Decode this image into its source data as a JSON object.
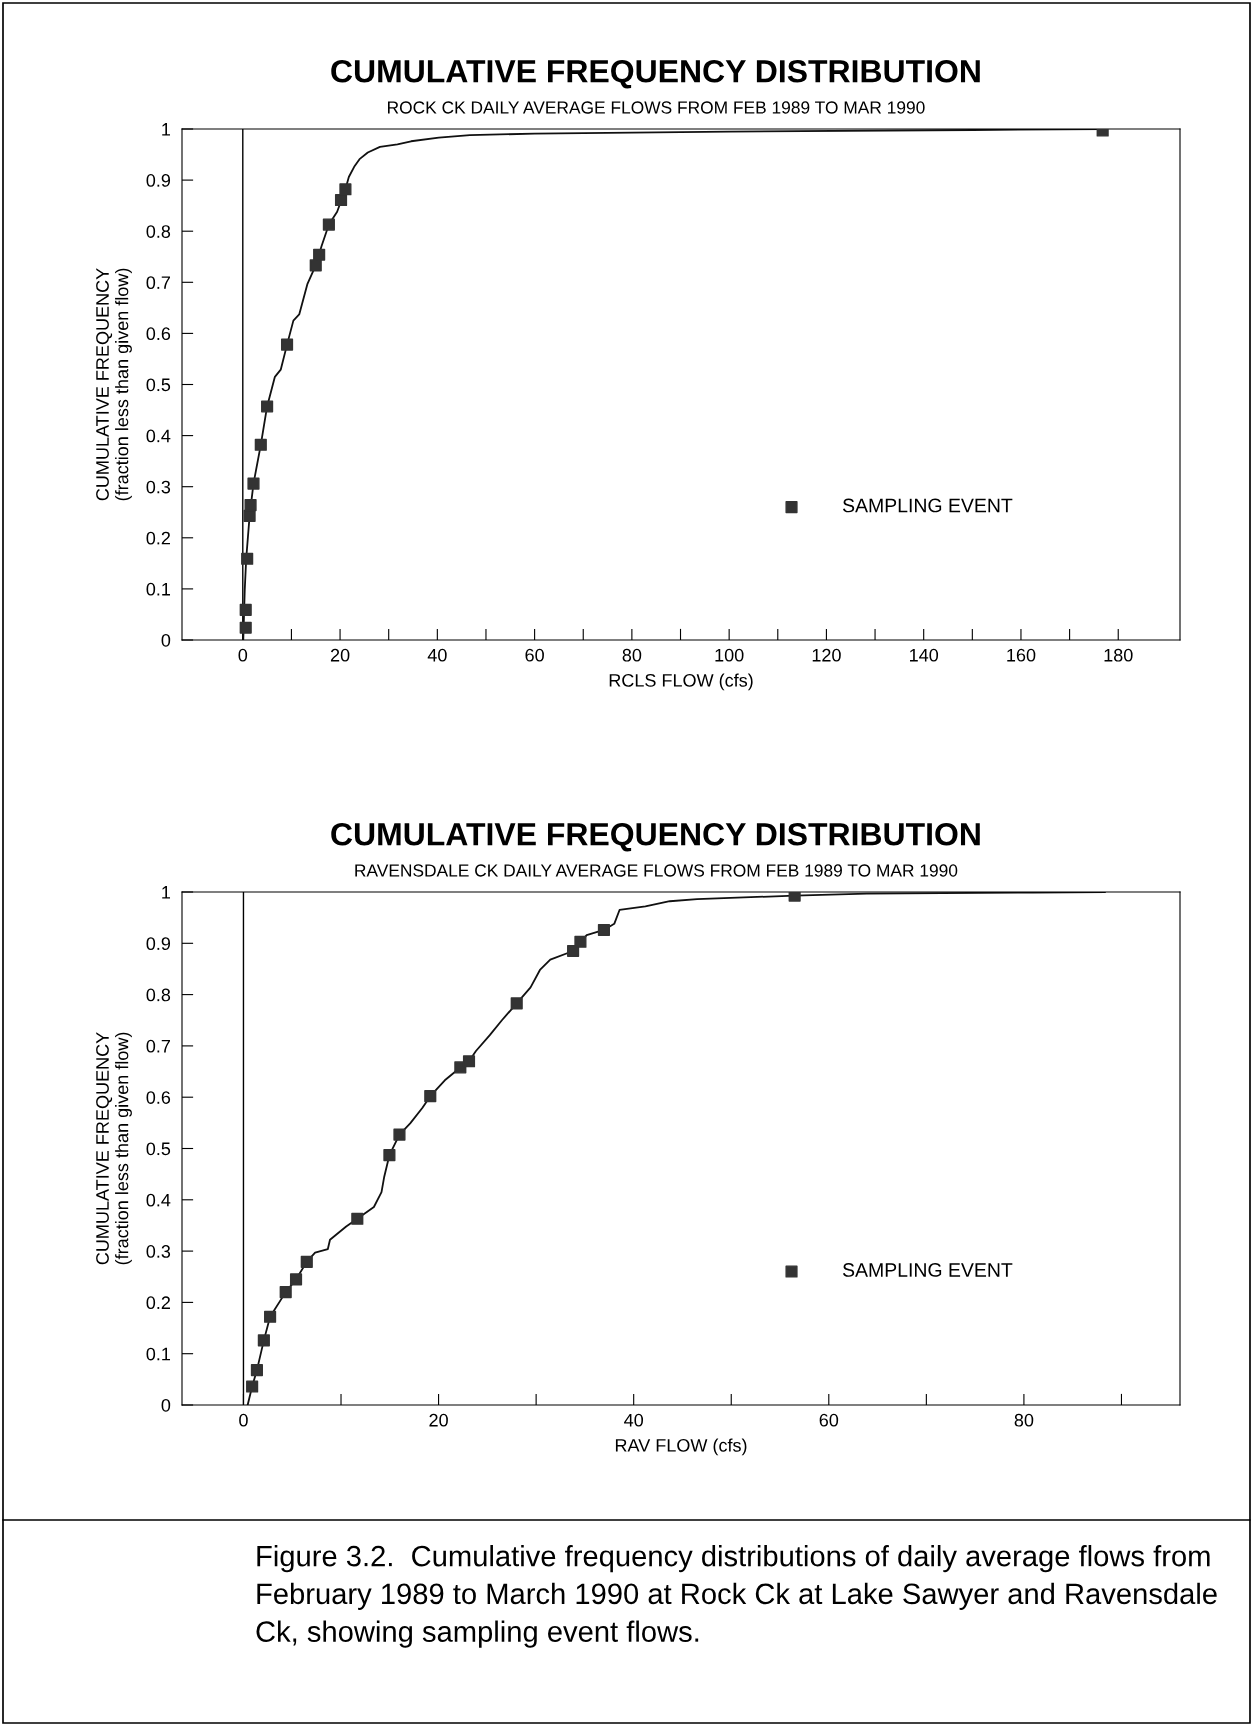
{
  "chart_data": [
    {
      "type": "line",
      "title": "CUMULATIVE FREQUENCY DISTRIBUTION",
      "subtitle": "ROCK CK DAILY AVERAGE FLOWS FROM FEB 1989 TO MAR 1990",
      "xlabel": "RCLS FLOW (cfs)",
      "ylabel": "CUMULATIVE FREQUENCY\n(fraction less than given flow)",
      "xlim": [
        -12.5,
        192.7
      ],
      "xticks": [
        0,
        {
          "value": 10,
          "label": null
        },
        20,
        {
          "value": 30,
          "label": null
        },
        40,
        {
          "value": 50,
          "label": null
        },
        60,
        {
          "value": 70,
          "label": null
        },
        80,
        {
          "value": 90,
          "label": null
        },
        100,
        {
          "value": 110,
          "label": null
        },
        120,
        {
          "value": 130,
          "label": null
        },
        140,
        {
          "value": 150,
          "label": null
        },
        160,
        {
          "value": 170,
          "label": null
        },
        180
      ],
      "ylim": [
        0,
        1
      ],
      "yticks": [
        0,
        0.1,
        0.2,
        0.3,
        0.4,
        0.5,
        0.6,
        0.7,
        0.8,
        0.9,
        1
      ],
      "ref_lines": [
        {
          "axis": "x",
          "value": 0,
          "color": "#000000"
        }
      ],
      "legend": "right",
      "grid": false,
      "series": [
        {
          "type": "line",
          "color": "#111111",
          "line_style": "solid",
          "marker": "none",
          "x": [
            0.1,
            0.4,
            0.7,
            1.4,
            2.2,
            3.7,
            5.0,
            6.6,
            7.8,
            9.1,
            10.4,
            11.6,
            13.3,
            15.0,
            16.2,
            17.7,
            19.4,
            21.1,
            21.8,
            22.9,
            24.0,
            25.7,
            28.2,
            31.8,
            34.6,
            40.3,
            46.7,
            60,
            100,
            150,
            177
          ],
          "values": [
            0,
            0.098,
            0.159,
            0.243,
            0.306,
            0.382,
            0.457,
            0.515,
            0.529,
            0.578,
            0.625,
            0.637,
            0.697,
            0.733,
            0.771,
            0.813,
            0.838,
            0.882,
            0.906,
            0.926,
            0.941,
            0.954,
            0.965,
            0.97,
            0.976,
            0.983,
            0.988,
            0.991,
            0.995,
            0.998,
            1
          ]
        },
        {
          "type": "scatter",
          "name": "SAMPLING EVENT",
          "color": "#333333",
          "marker": "square",
          "x": [
            0.6,
            0.6,
            0.9,
            1.4,
            1.6,
            2.2,
            3.7,
            5.0,
            9.1,
            15.0,
            15.7,
            17.7,
            20.2,
            21.1,
            176.8
          ],
          "values": [
            0.024,
            0.059,
            0.159,
            0.243,
            0.264,
            0.306,
            0.382,
            0.457,
            0.578,
            0.733,
            0.754,
            0.813,
            0.861,
            0.882,
            0.997
          ]
        }
      ]
    },
    {
      "type": "line",
      "title": "CUMULATIVE FREQUENCY DISTRIBUTION",
      "subtitle": "RAVENSDALE CK DAILY AVERAGE FLOWS FROM FEB 1989 TO MAR 1990",
      "xlabel": "RAV FLOW (cfs)",
      "ylabel": "CUMULATIVE FREQUENCY\n(fraction less than given flow)",
      "xlim": [
        -6.3,
        96
      ],
      "xticks": [
        0,
        {
          "value": 10,
          "label": null
        },
        20,
        {
          "value": 30,
          "label": null
        },
        40,
        {
          "value": 50,
          "label": null
        },
        60,
        {
          "value": 70,
          "label": null
        },
        80,
        {
          "value": 90,
          "label": null
        }
      ],
      "ylim": [
        0,
        1
      ],
      "yticks": [
        0,
        0.1,
        0.2,
        0.3,
        0.4,
        0.5,
        0.6,
        0.7,
        0.8,
        0.9,
        1
      ],
      "ref_lines": [
        {
          "axis": "x",
          "value": 0,
          "color": "#000000"
        }
      ],
      "legend": "right",
      "grid": false,
      "annotations": [
        "Figure 3.2.  Cumulative frequency distributions of daily average flows from February 1989 to March 1990 at Rock Ck at Lake Sawyer and Ravensdale Ck, showing sampling event flows."
      ],
      "series": [
        {
          "type": "line",
          "color": "#111111",
          "line_style": "solid",
          "marker": "none",
          "x": [
            0.43,
            0.89,
            1.38,
            2.09,
            2.73,
            4.33,
            5.39,
            6.49,
            7.34,
            8.65,
            8.87,
            10.53,
            11.67,
            13.37,
            14.15,
            14.43,
            14.96,
            15.99,
            17.09,
            18.33,
            19.15,
            20.64,
            22.23,
            23.12,
            23.83,
            25.25,
            26.49,
            28.01,
            29.43,
            30.39,
            31.45,
            33.79,
            34.54,
            35.18,
            36.95,
            38.01,
            38.55,
            41.2,
            43.7,
            46.5,
            56.5,
            63.9,
            80.9,
            88.3
          ],
          "values": [
            0,
            0.036,
            0.068,
            0.126,
            0.172,
            0.22,
            0.245,
            0.279,
            0.297,
            0.304,
            0.322,
            0.348,
            0.363,
            0.386,
            0.415,
            0.445,
            0.487,
            0.527,
            0.549,
            0.579,
            0.602,
            0.633,
            0.658,
            0.67,
            0.69,
            0.721,
            0.75,
            0.783,
            0.814,
            0.848,
            0.868,
            0.885,
            0.903,
            0.916,
            0.926,
            0.938,
            0.965,
            0.972,
            0.982,
            0.986,
            0.993,
            0.997,
            0.999,
            1
          ]
        },
        {
          "type": "scatter",
          "name": "SAMPLING EVENT",
          "color": "#333333",
          "marker": "square",
          "x": [
            0.89,
            1.38,
            2.09,
            2.73,
            4.33,
            5.39,
            6.49,
            11.67,
            14.96,
            15.99,
            19.15,
            22.23,
            23.12,
            28.01,
            33.79,
            34.54,
            36.95,
            56.5
          ],
          "values": [
            0.036,
            0.068,
            0.126,
            0.172,
            0.22,
            0.245,
            0.279,
            0.363,
            0.487,
            0.527,
            0.602,
            0.658,
            0.67,
            0.783,
            0.885,
            0.903,
            0.926,
            0.993
          ]
        }
      ]
    }
  ]
}
